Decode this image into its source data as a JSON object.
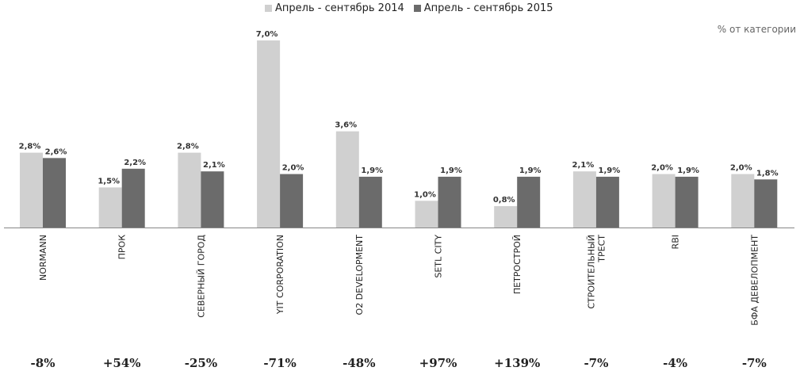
{
  "chart_data": {
    "type": "bar",
    "unit_label": "% от категории",
    "categories": [
      "NORMANN",
      "ПРОК",
      "СЕВЕРНЫЙ ГОРОД",
      "YIT CORPORATION",
      "O2 DEVELOPMENT",
      "SETL CITY",
      "ПЕТРОСТРОЙ",
      "СТРОИТЕЛЬНЫЙ ТРЕСТ",
      "RBI",
      "БФА ДЕВЕЛОПМЕНТ"
    ],
    "category_lines": [
      [
        "NORMANN"
      ],
      [
        "ПРОК"
      ],
      [
        "СЕВЕРНЫЙ ГОРОД"
      ],
      [
        "YIT CORPORATION"
      ],
      [
        "O2 DEVELOPMENT"
      ],
      [
        "SETL CITY"
      ],
      [
        "ПЕТРОСТРОЙ"
      ],
      [
        "СТРОИТЕЛЬНЫЙ",
        "ТРЕСТ"
      ],
      [
        "RBI"
      ],
      [
        "БФА ДЕВЕЛОПМЕНТ"
      ]
    ],
    "series": [
      {
        "name": "Апрель - сентябрь 2014",
        "color": "#d0d0d0",
        "values": [
          2.8,
          1.5,
          2.8,
          7.0,
          3.6,
          1.0,
          0.8,
          2.1,
          2.0,
          2.0
        ],
        "labels": [
          "2,8%",
          "1,5%",
          "2,8%",
          "7,0%",
          "3,6%",
          "1,0%",
          "0,8%",
          "2,1%",
          "2,0%",
          "2,0%"
        ]
      },
      {
        "name": "Апрель - сентябрь 2015",
        "color": "#6b6b6b",
        "values": [
          2.6,
          2.2,
          2.1,
          2.0,
          1.9,
          1.9,
          1.9,
          1.9,
          1.9,
          1.8
        ],
        "labels": [
          "2,6%",
          "2,2%",
          "2,1%",
          "2,0%",
          "1,9%",
          "1,9%",
          "1,9%",
          "1,9%",
          "1,9%",
          "1,8%"
        ]
      }
    ],
    "changes": [
      "-8%",
      "+54%",
      "-25%",
      "-71%",
      "-48%",
      "+97%",
      "+139%",
      "-7%",
      "-4%",
      "-7%"
    ],
    "ylim": [
      0,
      7.0
    ]
  }
}
